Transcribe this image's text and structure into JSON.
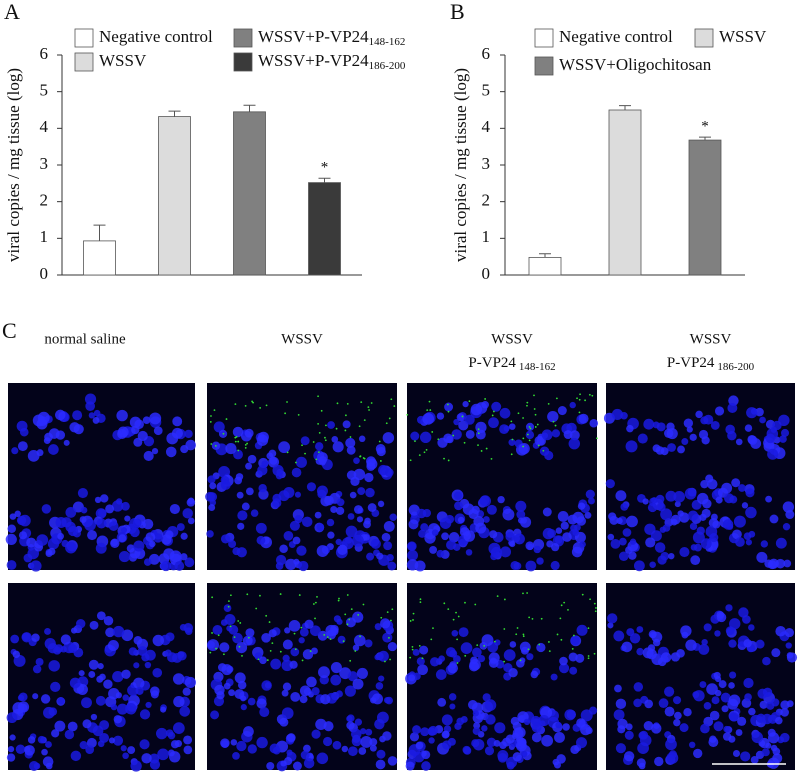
{
  "chart_data": [
    {
      "type": "bar",
      "panel_label": "A",
      "y_label": "viral copies / mg tissue (log)",
      "ylim": [
        0,
        6
      ],
      "yticks": [
        0,
        1,
        2,
        3,
        4,
        5,
        6
      ],
      "series": [
        {
          "name": "Negative control",
          "color": "#ffffff",
          "values": [
            0.93
          ],
          "errors": [
            0.43
          ]
        },
        {
          "name": "WSSV",
          "color": "#dcdcdc",
          "values": [
            4.32
          ],
          "errors": [
            0.15
          ]
        },
        {
          "name": "WSSV+P-VP24",
          "name_sub": "148-162",
          "color": "#808080",
          "values": [
            4.45
          ],
          "errors": [
            0.18
          ]
        },
        {
          "name": "WSSV+P-VP24",
          "name_sub": "186-200",
          "color": "#3a3a3a",
          "values": [
            2.52
          ],
          "errors": [
            0.12
          ],
          "annotation": "*"
        }
      ]
    },
    {
      "type": "bar",
      "panel_label": "B",
      "y_label": "viral copies / mg tissue (log)",
      "ylim": [
        0,
        6
      ],
      "yticks": [
        0,
        1,
        2,
        3,
        4,
        5,
        6
      ],
      "series": [
        {
          "name": "Negative control",
          "color": "#ffffff",
          "values": [
            0.48
          ],
          "errors": [
            0.1
          ]
        },
        {
          "name": "WSSV",
          "color": "#dcdcdc",
          "values": [
            4.5
          ],
          "errors": [
            0.12
          ]
        },
        {
          "name": "WSSV+Oligochitosan",
          "color": "#808080",
          "values": [
            3.68
          ],
          "errors": [
            0.08
          ],
          "annotation": "*"
        }
      ]
    }
  ],
  "microscopy": {
    "panel_label": "C",
    "columns": [
      {
        "title": "normal saline"
      },
      {
        "title": "WSSV"
      },
      {
        "title": "WSSV",
        "peptide": "P-VP24",
        "range": "148-162"
      },
      {
        "title": "WSSV",
        "peptide": "P-VP24",
        "range": "186-200"
      }
    ]
  }
}
